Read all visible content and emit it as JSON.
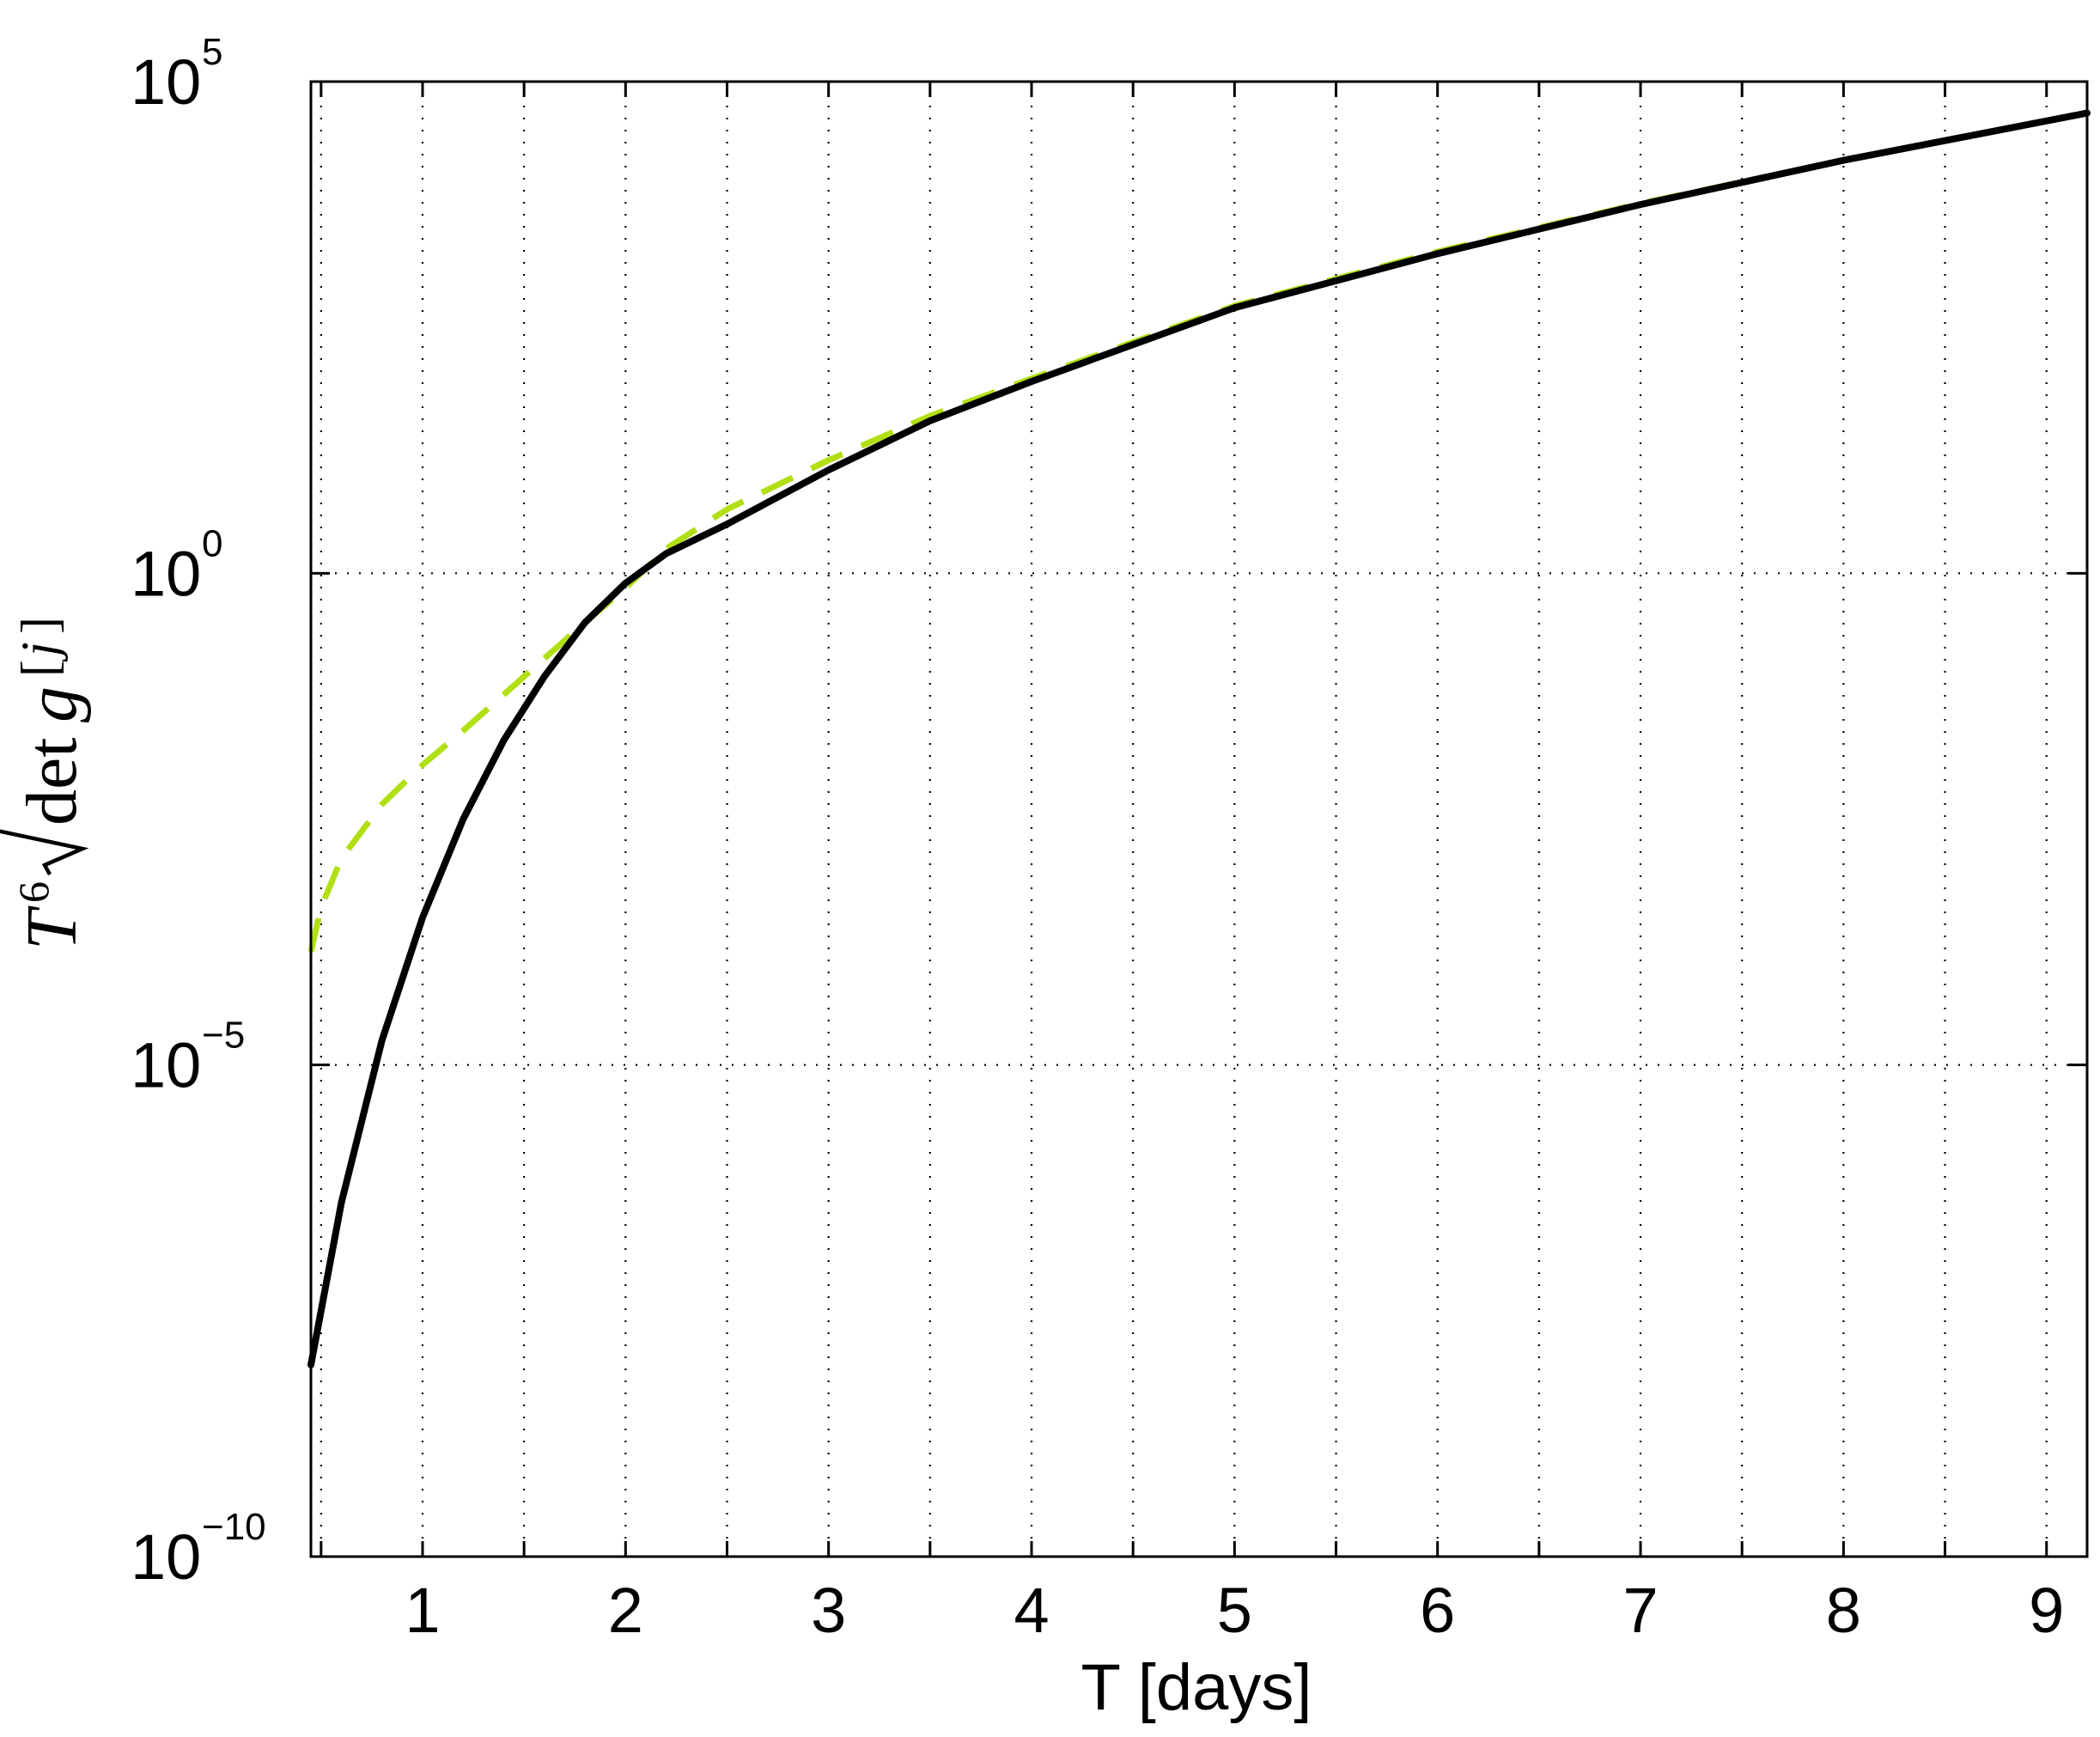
{
  "chart_data": {
    "type": "line",
    "xlabel": "T [days]",
    "ylabel": {
      "base": "T",
      "power": "6",
      "radicand_func": "det",
      "radicand_var": "g",
      "bracket_index": "j"
    },
    "xlim": [
      0.45,
      9.2
    ],
    "ylim_log10": [
      -10,
      5
    ],
    "y_scale": "log",
    "grid": "dotted",
    "x_ticks": [
      1,
      2,
      3,
      4,
      5,
      6,
      7,
      8,
      9
    ],
    "y_ticks": [
      {
        "base": "10",
        "exp": "5",
        "log10": 5
      },
      {
        "base": "10",
        "exp": "0",
        "log10": 0
      },
      {
        "base": "10",
        "exp": "−5",
        "log10": -5
      },
      {
        "base": "10",
        "exp": "−10",
        "log10": -10
      }
    ],
    "series": [
      {
        "line_style": "solid",
        "color": "#000000",
        "x": [
          0.45,
          0.6,
          0.8,
          1.0,
          1.2,
          1.4,
          1.6,
          1.8,
          2.0,
          2.2,
          2.5,
          3.0,
          3.5,
          4.0,
          5.0,
          6.0,
          7.0,
          8.0,
          9.2
        ],
        "log10y": [
          -8.05,
          -6.4,
          -4.75,
          -3.5,
          -2.5,
          -1.7,
          -1.05,
          -0.5,
          -0.1,
          0.2,
          0.5,
          1.05,
          1.55,
          1.95,
          2.7,
          3.25,
          3.75,
          4.2,
          4.68
        ]
      },
      {
        "line_style": "dashed",
        "color": "#b0e014",
        "x": [
          0.45,
          0.5,
          0.6,
          0.8,
          1.0,
          1.2,
          1.5,
          1.8,
          2.0,
          2.2,
          2.5,
          3.0,
          3.5,
          4.0,
          5.0,
          6.0,
          7.0,
          8.0,
          9.2
        ],
        "log10y": [
          -3.85,
          -3.4,
          -2.9,
          -2.35,
          -1.95,
          -1.6,
          -1.05,
          -0.5,
          -0.15,
          0.25,
          0.65,
          1.15,
          1.6,
          1.98,
          2.72,
          3.27,
          3.76,
          4.2,
          4.68
        ]
      }
    ]
  }
}
